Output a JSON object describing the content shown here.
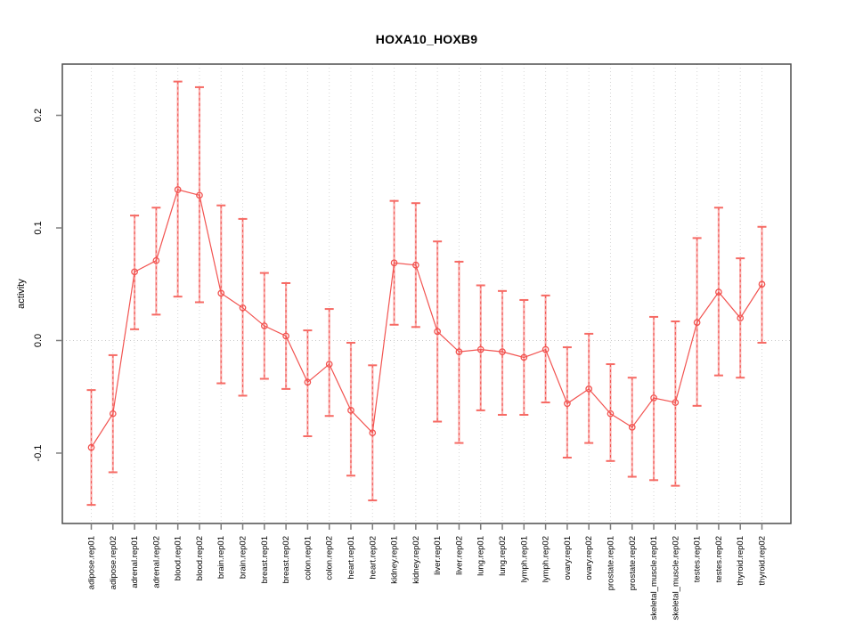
{
  "figure": {
    "background": "#ffffff"
  },
  "chart_data": {
    "type": "line",
    "title": "HOXA10_HOXB9",
    "xlabel": "",
    "ylabel": "activity",
    "ylim": [
      -0.1625,
      0.2455
    ],
    "yticks": [
      -0.1,
      0.0,
      0.1,
      0.2
    ],
    "ytick_labels": [
      "-0.1",
      "0.0",
      "0.1",
      "0.2"
    ],
    "grid": "vertical dotted gridline per category; dotted horizontal line at y=0",
    "legend": "none",
    "categories": [
      "adipose.rep01",
      "adipose.rep02",
      "adrenal.rep01",
      "adrenal.rep02",
      "blood.rep01",
      "blood.rep02",
      "brain.rep01",
      "brain.rep02",
      "breast.rep01",
      "breast.rep02",
      "colon.rep01",
      "colon.rep02",
      "heart.rep01",
      "heart.rep02",
      "kidney.rep01",
      "kidney.rep02",
      "liver.rep01",
      "liver.rep02",
      "lung.rep01",
      "lung.rep02",
      "lymph.rep01",
      "lymph.rep02",
      "ovary.rep01",
      "ovary.rep02",
      "prostate.rep01",
      "prostate.rep02",
      "skeletal_muscle.rep01",
      "skeletal_muscle.rep02",
      "testes.rep01",
      "testes.rep02",
      "thyroid.rep01",
      "thyroid.rep02"
    ],
    "series": [
      {
        "name": "activity",
        "marker": "open-circle",
        "values": [
          -0.095,
          -0.065,
          0.061,
          0.071,
          0.134,
          0.129,
          0.042,
          0.029,
          0.013,
          0.004,
          -0.037,
          -0.021,
          -0.062,
          -0.082,
          0.069,
          0.067,
          0.008,
          -0.01,
          -0.008,
          -0.01,
          -0.015,
          -0.008,
          -0.056,
          -0.043,
          -0.065,
          -0.077,
          -0.051,
          -0.055,
          0.016,
          0.043,
          0.02,
          0.05
        ],
        "ci_low": [
          -0.146,
          -0.117,
          0.01,
          0.023,
          0.039,
          0.034,
          -0.038,
          -0.049,
          -0.034,
          -0.043,
          -0.085,
          -0.067,
          -0.12,
          -0.142,
          0.014,
          0.012,
          -0.072,
          -0.091,
          -0.062,
          -0.066,
          -0.066,
          -0.055,
          -0.104,
          -0.091,
          -0.107,
          -0.121,
          -0.124,
          -0.129,
          -0.058,
          -0.031,
          -0.033,
          -0.002
        ],
        "ci_high": [
          -0.044,
          -0.013,
          0.111,
          0.118,
          0.23,
          0.225,
          0.12,
          0.108,
          0.06,
          0.051,
          0.009,
          0.028,
          -0.002,
          -0.022,
          0.124,
          0.122,
          0.088,
          0.07,
          0.049,
          0.044,
          0.036,
          0.04,
          -0.006,
          0.006,
          -0.021,
          -0.033,
          0.021,
          0.017,
          0.091,
          0.118,
          0.073,
          0.101
        ]
      }
    ],
    "colors": {
      "line": "#f25350",
      "marker": "#f25350",
      "errorbar_light": "#f9aeac",
      "errorbar_cap": "#f66a64",
      "grid": "#d6d6d6",
      "zero_line": "#c9c9c9",
      "axis_box": "#4d4d4d",
      "tick": "#7d7d7d",
      "text": "#000000"
    }
  }
}
